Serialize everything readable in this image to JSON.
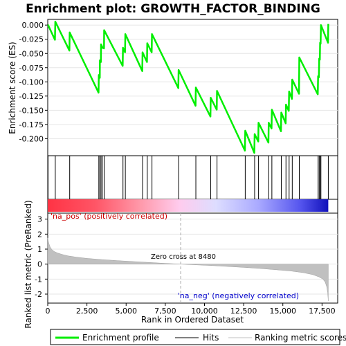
{
  "chart_data": {
    "type": "line",
    "title": "Enrichment plot: GROWTH_FACTOR_BINDING",
    "es_panel": {
      "ylabel": "Enrichment score (ES)",
      "ylim": [
        -0.23,
        0.01
      ],
      "yticks": [
        "0.000",
        "-0.025",
        "-0.050",
        "-0.075",
        "-0.100",
        "-0.125",
        "-0.150",
        "-0.175",
        "-0.200"
      ],
      "ytick_values": [
        0.0,
        -0.025,
        -0.05,
        -0.075,
        -0.1,
        -0.125,
        -0.15,
        -0.175,
        -0.2
      ]
    },
    "metric_panel": {
      "ylabel": "Ranked list metric (PreRanked)",
      "ylim": [
        -2.6,
        3.4
      ],
      "yticks": [
        "3",
        "2",
        "1",
        "0",
        "-1",
        "-2"
      ],
      "ytick_values": [
        3,
        2,
        1,
        0,
        -1,
        -2
      ],
      "xlabel": "Rank in Ordered Dataset",
      "xlim": [
        0,
        18500
      ],
      "xticks": [
        "0",
        "2,500",
        "5,000",
        "7,500",
        "10,000",
        "12,500",
        "15,000",
        "17,500"
      ],
      "xtick_values": [
        0,
        2500,
        5000,
        7500,
        10000,
        12500,
        15000,
        17500
      ],
      "zero_cross_label": "Zero cross at 8480",
      "zero_cross": 8480,
      "pos_label": "'na_pos' (positively correlated)",
      "neg_label": "'na_neg' (negatively correlated)",
      "n_genes": 17900
    },
    "hits": [
      20,
      480,
      1400,
      3260,
      3330,
      3400,
      3480,
      3600,
      4800,
      4950,
      6050,
      6350,
      6650,
      8350,
      9450,
      10400,
      10800,
      12600,
      13200,
      13450,
      14100,
      14300,
      14900,
      15200,
      15400,
      15600,
      16050,
      17250,
      17320,
      17380,
      17430,
      17900
    ],
    "es_curve": [
      [
        0,
        0.0
      ],
      [
        20,
        0.0
      ],
      [
        460,
        -0.026
      ],
      [
        480,
        0.006
      ],
      [
        1380,
        -0.045
      ],
      [
        1400,
        -0.013
      ],
      [
        3240,
        -0.119
      ],
      [
        3260,
        -0.088
      ],
      [
        3320,
        -0.093
      ],
      [
        3330,
        -0.062
      ],
      [
        3390,
        -0.065
      ],
      [
        3400,
        -0.034
      ],
      [
        3470,
        -0.038
      ],
      [
        3480,
        -0.04
      ],
      [
        3590,
        -0.041
      ],
      [
        3600,
        -0.009
      ],
      [
        4780,
        -0.072
      ],
      [
        4800,
        -0.04
      ],
      [
        4930,
        -0.048
      ],
      [
        4950,
        -0.016
      ],
      [
        6030,
        -0.081
      ],
      [
        6050,
        -0.048
      ],
      [
        6330,
        -0.065
      ],
      [
        6350,
        -0.032
      ],
      [
        6630,
        -0.048
      ],
      [
        6650,
        -0.016
      ],
      [
        8330,
        -0.111
      ],
      [
        8350,
        -0.079
      ],
      [
        9430,
        -0.142
      ],
      [
        9450,
        -0.11
      ],
      [
        10380,
        -0.161
      ],
      [
        10400,
        -0.128
      ],
      [
        10780,
        -0.149
      ],
      [
        10800,
        -0.116
      ],
      [
        12580,
        -0.221
      ],
      [
        12600,
        -0.186
      ],
      [
        13180,
        -0.225
      ],
      [
        13200,
        -0.192
      ],
      [
        13430,
        -0.205
      ],
      [
        13450,
        -0.172
      ],
      [
        14080,
        -0.207
      ],
      [
        14100,
        -0.172
      ],
      [
        14280,
        -0.182
      ],
      [
        14300,
        -0.149
      ],
      [
        14880,
        -0.187
      ],
      [
        14900,
        -0.154
      ],
      [
        15180,
        -0.173
      ],
      [
        15200,
        -0.14
      ],
      [
        15380,
        -0.151
      ],
      [
        15400,
        -0.117
      ],
      [
        15580,
        -0.13
      ],
      [
        15600,
        -0.096
      ],
      [
        16030,
        -0.121
      ],
      [
        16050,
        -0.057
      ],
      [
        17230,
        -0.122
      ],
      [
        17250,
        -0.09
      ],
      [
        17300,
        -0.092
      ],
      [
        17320,
        -0.059
      ],
      [
        17360,
        -0.061
      ],
      [
        17380,
        -0.031
      ],
      [
        17410,
        -0.033
      ],
      [
        17430,
        0.0
      ],
      [
        17880,
        -0.031
      ],
      [
        17900,
        0.002
      ]
    ],
    "metric_curve": [
      [
        0,
        1.75
      ],
      [
        30,
        1.55
      ],
      [
        80,
        1.35
      ],
      [
        150,
        1.15
      ],
      [
        250,
        0.98
      ],
      [
        400,
        0.85
      ],
      [
        600,
        0.75
      ],
      [
        900,
        0.65
      ],
      [
        1300,
        0.55
      ],
      [
        1800,
        0.47
      ],
      [
        2500,
        0.38
      ],
      [
        3500,
        0.3
      ],
      [
        4500,
        0.23
      ],
      [
        5500,
        0.17
      ],
      [
        6500,
        0.11
      ],
      [
        7500,
        0.05
      ],
      [
        8480,
        0.0
      ],
      [
        9500,
        -0.05
      ],
      [
        10500,
        -0.1
      ],
      [
        11500,
        -0.16
      ],
      [
        12500,
        -0.22
      ],
      [
        13500,
        -0.29
      ],
      [
        14500,
        -0.37
      ],
      [
        15500,
        -0.46
      ],
      [
        16300,
        -0.57
      ],
      [
        16900,
        -0.7
      ],
      [
        17300,
        -0.85
      ],
      [
        17550,
        -1.0
      ],
      [
        17700,
        -1.2
      ],
      [
        17800,
        -1.5
      ],
      [
        17860,
        -1.9
      ],
      [
        17900,
        -2.45
      ]
    ],
    "legend": [
      "Enrichment profile",
      "Hits",
      "Ranking metric scores"
    ],
    "colors": {
      "es_line": "#00ee00",
      "hit_line": "#000000",
      "metric_fill": "#c0c0c0",
      "zero_cross_line": "#aaaaaa",
      "pos_label": "#cc0000",
      "neg_label": "#0000cc"
    }
  }
}
